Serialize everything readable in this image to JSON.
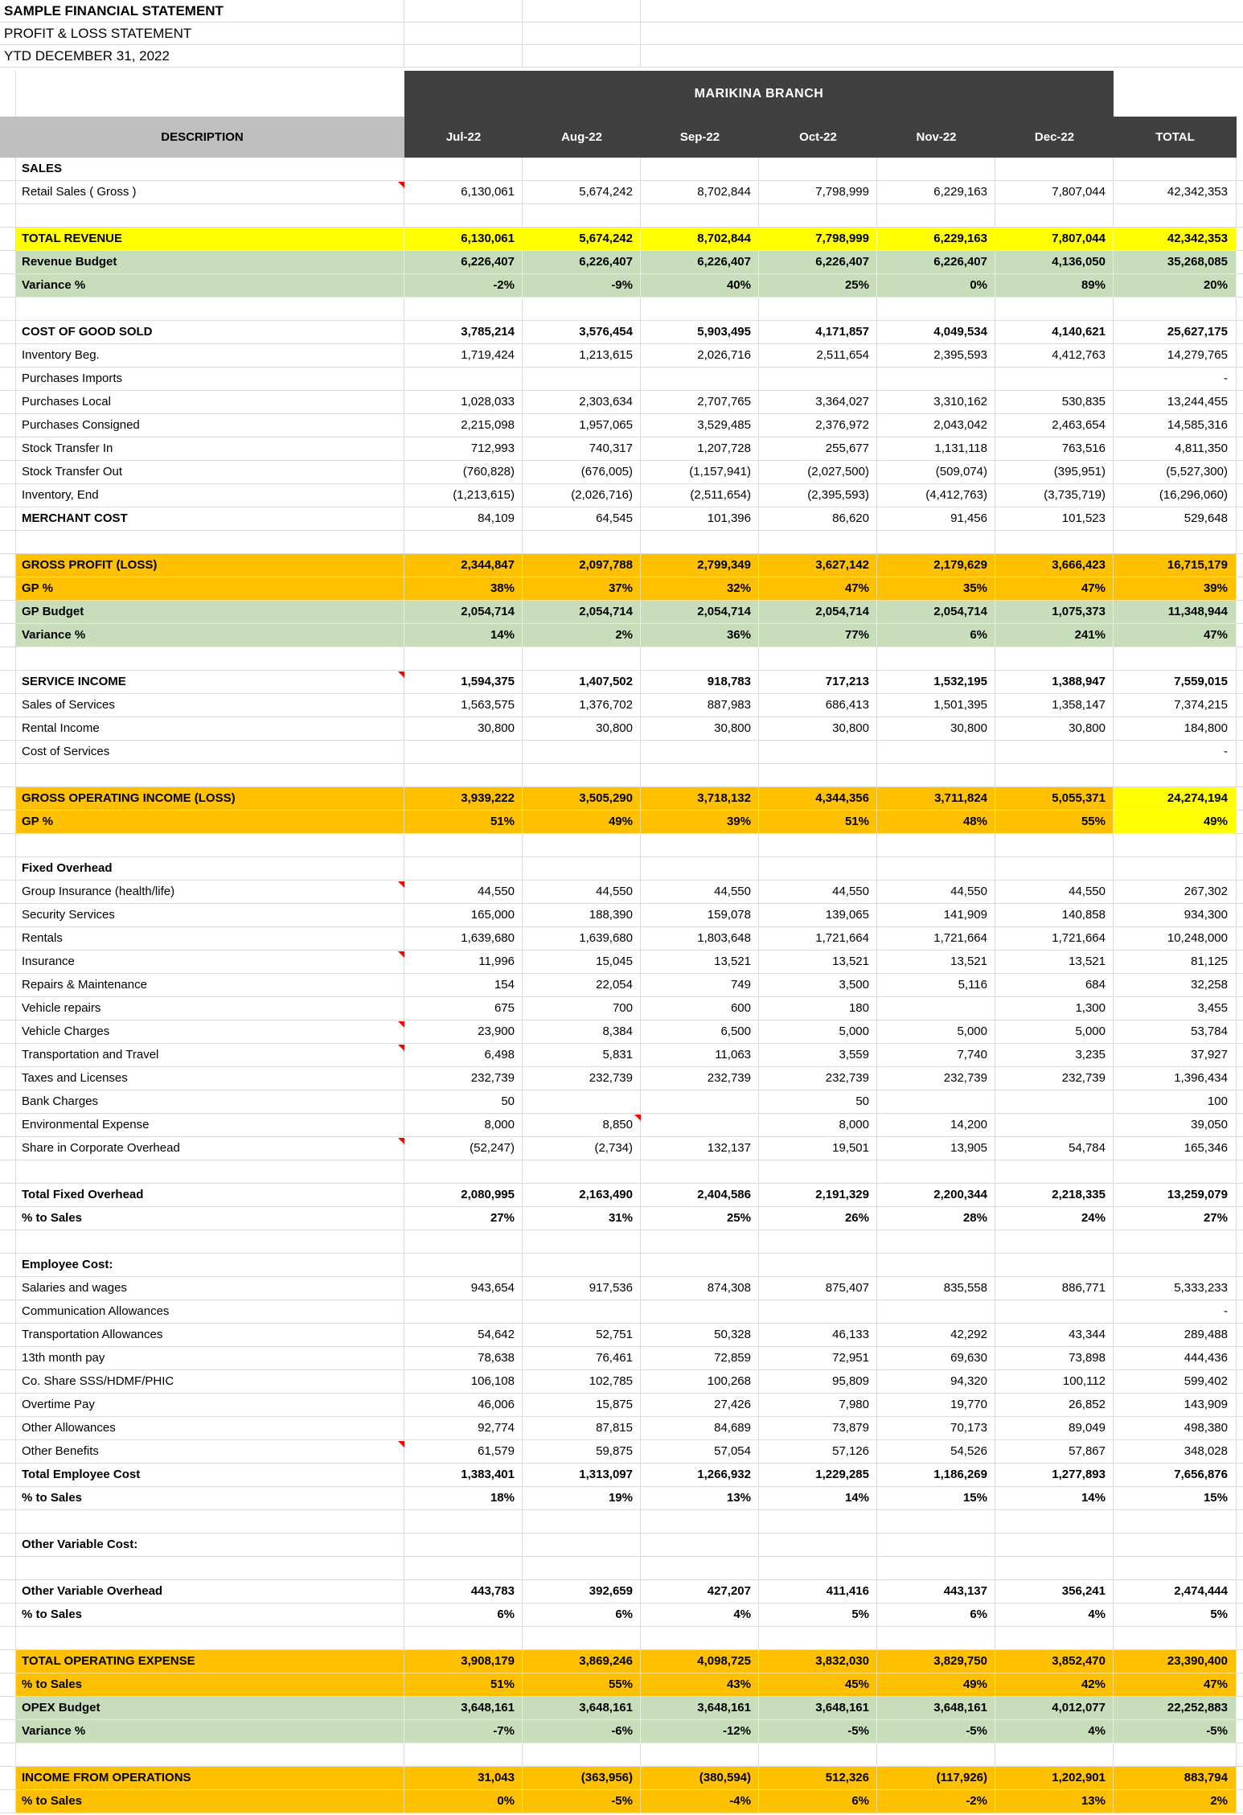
{
  "titles": {
    "line1": "SAMPLE FINANCIAL STATEMENT",
    "line2": "PROFIT & LOSS STATEMENT",
    "line3": "YTD DECEMBER 31, 2022"
  },
  "header": {
    "branch": "MARIKINA BRANCH",
    "description": "DESCRIPTION",
    "months": [
      "Jul-22",
      "Aug-22",
      "Sep-22",
      "Oct-22",
      "Nov-22",
      "Dec-22"
    ],
    "total": "TOTAL"
  },
  "colors": {
    "header_dark": "#404040",
    "header_gray": "#BFBFBF",
    "highlight_yellow": "#FFFF00",
    "highlight_green": "#C8DDBA",
    "highlight_orange": "#FFC000",
    "gridline": "#DADADA",
    "comment_marker_red": "#FF0000"
  },
  "rows": [
    {
      "label": "SALES",
      "bold": "label"
    },
    {
      "label": "Retail Sales ( Gross )",
      "marker": "desc",
      "values": [
        "6,130,061",
        "5,674,242",
        "8,702,844",
        "7,798,999",
        "6,229,163",
        "7,807,044",
        "42,342,353"
      ]
    },
    {
      "blank": true
    },
    {
      "label": "TOTAL REVENUE",
      "bg": "yellow",
      "bold": "all",
      "values": [
        "6,130,061",
        "5,674,242",
        "8,702,844",
        "7,798,999",
        "6,229,163",
        "7,807,044",
        "42,342,353"
      ]
    },
    {
      "label": "Revenue Budget",
      "bg": "green",
      "bold": "all",
      "values": [
        "6,226,407",
        "6,226,407",
        "6,226,407",
        "6,226,407",
        "6,226,407",
        "4,136,050",
        "35,268,085"
      ]
    },
    {
      "label": "Variance %",
      "bg": "green",
      "bold": "all",
      "values": [
        "-2%",
        "-9%",
        "40%",
        "25%",
        "0%",
        "89%",
        "20%"
      ]
    },
    {
      "blank": true
    },
    {
      "label": "COST OF GOOD SOLD",
      "bold": "all",
      "values": [
        "3,785,214",
        "3,576,454",
        "5,903,495",
        "4,171,857",
        "4,049,534",
        "4,140,621",
        "25,627,175"
      ]
    },
    {
      "label": "Inventory Beg.",
      "values": [
        "1,719,424",
        "1,213,615",
        "2,026,716",
        "2,511,654",
        "2,395,593",
        "4,412,763",
        "14,279,765"
      ]
    },
    {
      "label": "Purchases Imports",
      "values": [
        "",
        "",
        "",
        "",
        "",
        "",
        "-"
      ]
    },
    {
      "label": "Purchases Local",
      "values": [
        "1,028,033",
        "2,303,634",
        "2,707,765",
        "3,364,027",
        "3,310,162",
        "530,835",
        "13,244,455"
      ]
    },
    {
      "label": "Purchases Consigned",
      "values": [
        "2,215,098",
        "1,957,065",
        "3,529,485",
        "2,376,972",
        "2,043,042",
        "2,463,654",
        "14,585,316"
      ]
    },
    {
      "label": "Stock Transfer In",
      "values": [
        "712,993",
        "740,317",
        "1,207,728",
        "255,677",
        "1,131,118",
        "763,516",
        "4,811,350"
      ]
    },
    {
      "label": "Stock Transfer Out",
      "values": [
        "(760,828)",
        "(676,005)",
        "(1,157,941)",
        "(2,027,500)",
        "(509,074)",
        "(395,951)",
        "(5,527,300)"
      ]
    },
    {
      "label": "Inventory, End",
      "values": [
        "(1,213,615)",
        "(2,026,716)",
        "(2,511,654)",
        "(2,395,593)",
        "(4,412,763)",
        "(3,735,719)",
        "(16,296,060)"
      ]
    },
    {
      "label": "MERCHANT COST",
      "bold": "label",
      "values": [
        "84,109",
        "64,545",
        "101,396",
        "86,620",
        "91,456",
        "101,523",
        "529,648"
      ]
    },
    {
      "blank": true
    },
    {
      "label": "GROSS PROFIT (LOSS)",
      "bg": "orange",
      "bold": "all",
      "values": [
        "2,344,847",
        "2,097,788",
        "2,799,349",
        "3,627,142",
        "2,179,629",
        "3,666,423",
        "16,715,179"
      ]
    },
    {
      "label": "GP %",
      "bg": "orange",
      "bold": "all",
      "values": [
        "38%",
        "37%",
        "32%",
        "47%",
        "35%",
        "47%",
        "39%"
      ]
    },
    {
      "label": "GP Budget",
      "bg": "green",
      "bold": "all",
      "values": [
        "2,054,714",
        "2,054,714",
        "2,054,714",
        "2,054,714",
        "2,054,714",
        "1,075,373",
        "11,348,944"
      ]
    },
    {
      "label": "Variance %",
      "bg": "green",
      "bold": "all",
      "values": [
        "14%",
        "2%",
        "36%",
        "77%",
        "6%",
        "241%",
        "47%"
      ]
    },
    {
      "blank": true
    },
    {
      "label": "SERVICE INCOME",
      "bold": "all",
      "marker": "desc",
      "values": [
        "1,594,375",
        "1,407,502",
        "918,783",
        "717,213",
        "1,532,195",
        "1,388,947",
        "7,559,015"
      ]
    },
    {
      "label": "Sales of Services",
      "values": [
        "1,563,575",
        "1,376,702",
        "887,983",
        "686,413",
        "1,501,395",
        "1,358,147",
        "7,374,215"
      ]
    },
    {
      "label": "Rental Income",
      "values": [
        "30,800",
        "30,800",
        "30,800",
        "30,800",
        "30,800",
        "30,800",
        "184,800"
      ]
    },
    {
      "label": "Cost of Services",
      "values": [
        "",
        "",
        "",
        "",
        "",
        "",
        "-"
      ]
    },
    {
      "blank": true
    },
    {
      "label": "GROSS OPERATING INCOME (LOSS)",
      "bg": "orange",
      "total_bg": "yellow",
      "bold": "all",
      "values": [
        "3,939,222",
        "3,505,290",
        "3,718,132",
        "4,344,356",
        "3,711,824",
        "5,055,371",
        "24,274,194"
      ]
    },
    {
      "label": "GP %",
      "bg": "orange",
      "total_bg": "yellow",
      "bold": "all",
      "values": [
        "51%",
        "49%",
        "39%",
        "51%",
        "48%",
        "55%",
        "49%"
      ]
    },
    {
      "blank": true
    },
    {
      "label": "Fixed Overhead",
      "bold": "label"
    },
    {
      "label": "Group Insurance (health/life)",
      "marker": "desc",
      "values": [
        "44,550",
        "44,550",
        "44,550",
        "44,550",
        "44,550",
        "44,550",
        "267,302"
      ]
    },
    {
      "label": "Security Services",
      "values": [
        "165,000",
        "188,390",
        "159,078",
        "139,065",
        "141,909",
        "140,858",
        "934,300"
      ]
    },
    {
      "label": "Rentals",
      "values": [
        "1,639,680",
        "1,639,680",
        "1,803,648",
        "1,721,664",
        "1,721,664",
        "1,721,664",
        "10,248,000"
      ]
    },
    {
      "label": "Insurance",
      "marker": "desc",
      "values": [
        "11,996",
        "15,045",
        "13,521",
        "13,521",
        "13,521",
        "13,521",
        "81,125"
      ]
    },
    {
      "label": "Repairs & Maintenance",
      "values": [
        "154",
        "22,054",
        "749",
        "3,500",
        "5,116",
        "684",
        "32,258"
      ]
    },
    {
      "label": "Vehicle repairs",
      "values": [
        "675",
        "700",
        "600",
        "180",
        "",
        "1,300",
        "3,455"
      ]
    },
    {
      "label": "Vehicle Charges",
      "marker": "desc",
      "values": [
        "23,900",
        "8,384",
        "6,500",
        "5,000",
        "5,000",
        "5,000",
        "53,784"
      ]
    },
    {
      "label": "Transportation and Travel",
      "marker": "desc",
      "values": [
        "6,498",
        "5,831",
        "11,063",
        "3,559",
        "7,740",
        "3,235",
        "37,927"
      ]
    },
    {
      "label": "Taxes and Licenses",
      "values": [
        "232,739",
        "232,739",
        "232,739",
        "232,739",
        "232,739",
        "232,739",
        "1,396,434"
      ]
    },
    {
      "label": "Bank Charges",
      "values": [
        "50",
        "",
        "",
        "50",
        "",
        "",
        "100"
      ]
    },
    {
      "label": "Environmental Expense",
      "marker": "aug",
      "values": [
        "8,000",
        "8,850",
        "",
        "8,000",
        "14,200",
        "",
        "39,050"
      ]
    },
    {
      "label": "Share in Corporate Overhead",
      "marker": "desc",
      "values": [
        "(52,247)",
        "(2,734)",
        "132,137",
        "19,501",
        "13,905",
        "54,784",
        "165,346"
      ]
    },
    {
      "blank": true
    },
    {
      "label": "Total Fixed Overhead",
      "bold": "all",
      "values": [
        "2,080,995",
        "2,163,490",
        "2,404,586",
        "2,191,329",
        "2,200,344",
        "2,218,335",
        "13,259,079"
      ]
    },
    {
      "label": "% to Sales",
      "bold": "all",
      "values": [
        "27%",
        "31%",
        "25%",
        "26%",
        "28%",
        "24%",
        "27%"
      ]
    },
    {
      "blank": true
    },
    {
      "label": "Employee Cost:",
      "bold": "label"
    },
    {
      "label": "Salaries and wages",
      "values": [
        "943,654",
        "917,536",
        "874,308",
        "875,407",
        "835,558",
        "886,771",
        "5,333,233"
      ]
    },
    {
      "label": "Communication Allowances",
      "values": [
        "",
        "",
        "",
        "",
        "",
        "",
        "-"
      ]
    },
    {
      "label": "Transportation Allowances",
      "values": [
        "54,642",
        "52,751",
        "50,328",
        "46,133",
        "42,292",
        "43,344",
        "289,488"
      ]
    },
    {
      "label": "13th month pay",
      "values": [
        "78,638",
        "76,461",
        "72,859",
        "72,951",
        "69,630",
        "73,898",
        "444,436"
      ]
    },
    {
      "label": "Co. Share SSS/HDMF/PHIC",
      "values": [
        "106,108",
        "102,785",
        "100,268",
        "95,809",
        "94,320",
        "100,112",
        "599,402"
      ]
    },
    {
      "label": "Overtime Pay",
      "values": [
        "46,006",
        "15,875",
        "27,426",
        "7,980",
        "19,770",
        "26,852",
        "143,909"
      ]
    },
    {
      "label": "Other Allowances",
      "values": [
        "92,774",
        "87,815",
        "84,689",
        "73,879",
        "70,173",
        "89,049",
        "498,380"
      ]
    },
    {
      "label": "Other Benefits",
      "marker": "desc",
      "values": [
        "61,579",
        "59,875",
        "57,054",
        "57,126",
        "54,526",
        "57,867",
        "348,028"
      ]
    },
    {
      "label": "Total Employee Cost",
      "bold": "all",
      "values": [
        "1,383,401",
        "1,313,097",
        "1,266,932",
        "1,229,285",
        "1,186,269",
        "1,277,893",
        "7,656,876"
      ]
    },
    {
      "label": "% to Sales",
      "bold": "all",
      "values": [
        "18%",
        "19%",
        "13%",
        "14%",
        "15%",
        "14%",
        "15%"
      ]
    },
    {
      "blank": true
    },
    {
      "label": "Other Variable Cost:",
      "bold": "label"
    },
    {
      "blank": true
    },
    {
      "label": "Other Variable Overhead",
      "bold": "all",
      "values": [
        "443,783",
        "392,659",
        "427,207",
        "411,416",
        "443,137",
        "356,241",
        "2,474,444"
      ]
    },
    {
      "label": "% to Sales",
      "bold": "all",
      "values": [
        "6%",
        "6%",
        "4%",
        "5%",
        "6%",
        "4%",
        "5%"
      ]
    },
    {
      "blank": true
    },
    {
      "label": "TOTAL OPERATING EXPENSE",
      "bg": "orange",
      "bold": "all",
      "values": [
        "3,908,179",
        "3,869,246",
        "4,098,725",
        "3,832,030",
        "3,829,750",
        "3,852,470",
        "23,390,400"
      ]
    },
    {
      "label": "% to Sales",
      "bg": "orange",
      "bold": "all",
      "values": [
        "51%",
        "55%",
        "43%",
        "45%",
        "49%",
        "42%",
        "47%"
      ]
    },
    {
      "label": "OPEX Budget",
      "bg": "green",
      "bold": "all",
      "values": [
        "3,648,161",
        "3,648,161",
        "3,648,161",
        "3,648,161",
        "3,648,161",
        "4,012,077",
        "22,252,883"
      ]
    },
    {
      "label": "Variance %",
      "bg": "green",
      "bold": "all",
      "values": [
        "-7%",
        "-6%",
        "-12%",
        "-5%",
        "-5%",
        "4%",
        "-5%"
      ]
    },
    {
      "blank": true
    },
    {
      "label": "INCOME FROM OPERATIONS",
      "bg": "orange",
      "bold": "all",
      "values": [
        "31,043",
        "(363,956)",
        "(380,594)",
        "512,326",
        "(117,926)",
        "1,202,901",
        "883,794"
      ]
    },
    {
      "label": "% to Sales",
      "bg": "orange",
      "bold": "all",
      "values": [
        "0%",
        "-5%",
        "-4%",
        "6%",
        "-2%",
        "13%",
        "2%"
      ]
    }
  ]
}
